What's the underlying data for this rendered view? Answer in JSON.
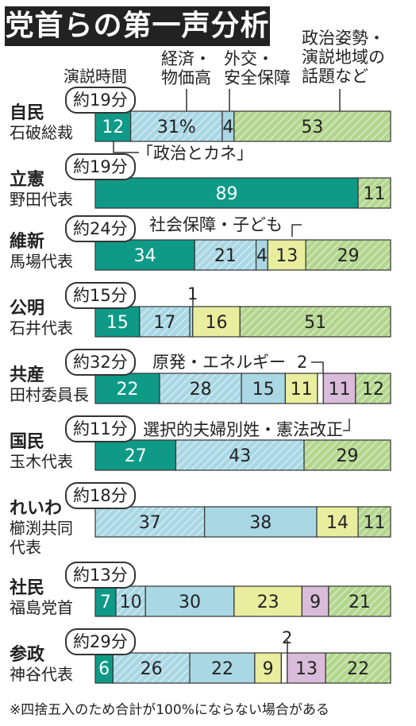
{
  "title": "党首らの第一声分析",
  "footnote": "※四捨五入のため合計が100%にならない場合がある",
  "colors": {
    "c1": "#0f9a87",
    "c2": "#a9d7e4",
    "c3": "#a9d7e4",
    "c4": "#e9ee9f",
    "c5": "#d9bcd9",
    "c6": "#b3d68e",
    "stroke": "#333333"
  },
  "headers": {
    "time": "演説時間",
    "economy": "経済・\n物価高",
    "diplomacy": "外交・\n安全保障",
    "politics": "政治姿勢・\n演説地域の\n話題など"
  },
  "callouts": {
    "money": "「政治とカネ」",
    "welfare": "社会保障・子ども",
    "energy": "原発・エネルギー",
    "surname": "選択的夫婦別姓・憲法改正",
    "one": "1",
    "two_kyosan": "2",
    "two_sansei": "2"
  },
  "chart_data": {
    "type": "bar",
    "orientation": "horizontal",
    "stacked": true,
    "unit": "%",
    "rows": [
      {
        "party": "自民",
        "leader": "石破総裁",
        "time": "約19分",
        "segments": [
          {
            "cat": "c1",
            "value": 12
          },
          {
            "cat": "c3",
            "value": 31,
            "label": "31%"
          },
          {
            "cat": "c2",
            "value": 4
          },
          {
            "cat": "c6",
            "value": 53
          }
        ]
      },
      {
        "party": "立憲",
        "leader": "野田代表",
        "time": "約19分",
        "segments": [
          {
            "cat": "c1",
            "value": 89
          },
          {
            "cat": "c6",
            "value": 11
          }
        ]
      },
      {
        "party": "維新",
        "leader": "馬場代表",
        "time": "約24分",
        "segments": [
          {
            "cat": "c1",
            "value": 34
          },
          {
            "cat": "c3",
            "value": 21
          },
          {
            "cat": "c2",
            "value": 4
          },
          {
            "cat": "c4",
            "value": 13
          },
          {
            "cat": "c6",
            "value": 29
          }
        ]
      },
      {
        "party": "公明",
        "leader": "石井代表",
        "time": "約15分",
        "segments": [
          {
            "cat": "c1",
            "value": 15
          },
          {
            "cat": "c3",
            "value": 17
          },
          {
            "cat": "c2",
            "value": 1,
            "label": ""
          },
          {
            "cat": "c4",
            "value": 16
          },
          {
            "cat": "c6",
            "value": 51
          }
        ]
      },
      {
        "party": "共産",
        "leader": "田村委員長",
        "time": "約32分",
        "segments": [
          {
            "cat": "c1",
            "value": 22
          },
          {
            "cat": "c3",
            "value": 28
          },
          {
            "cat": "c2",
            "value": 15
          },
          {
            "cat": "c4",
            "value": 11
          },
          {
            "cat": "c5w",
            "value": 2,
            "label": ""
          },
          {
            "cat": "c5",
            "value": 11
          },
          {
            "cat": "c6",
            "value": 12
          }
        ]
      },
      {
        "party": "国民",
        "leader": "玉木代表",
        "time": "約11分",
        "segments": [
          {
            "cat": "c1",
            "value": 27
          },
          {
            "cat": "c3",
            "value": 43
          },
          {
            "cat": "c6",
            "value": 29
          }
        ]
      },
      {
        "party": "れいわ",
        "leader": "櫛渕共同\n代表",
        "time": "約18分",
        "segments": [
          {
            "cat": "c3",
            "value": 37
          },
          {
            "cat": "c2",
            "value": 38
          },
          {
            "cat": "c4",
            "value": 14
          },
          {
            "cat": "c6",
            "value": 11
          }
        ]
      },
      {
        "party": "社民",
        "leader": "福島党首",
        "time": "約13分",
        "segments": [
          {
            "cat": "c1",
            "value": 7
          },
          {
            "cat": "c3",
            "value": 10
          },
          {
            "cat": "c2",
            "value": 30
          },
          {
            "cat": "c4",
            "value": 23
          },
          {
            "cat": "c5",
            "value": 9
          },
          {
            "cat": "c6",
            "value": 21
          }
        ]
      },
      {
        "party": "参政",
        "leader": "神谷代表",
        "time": "約29分",
        "segments": [
          {
            "cat": "c1",
            "value": 6
          },
          {
            "cat": "c3",
            "value": 26
          },
          {
            "cat": "c2",
            "value": 22
          },
          {
            "cat": "c4",
            "value": 9
          },
          {
            "cat": "c5w",
            "value": 2,
            "label": ""
          },
          {
            "cat": "c5",
            "value": 13
          },
          {
            "cat": "c6",
            "value": 22
          }
        ]
      }
    ]
  }
}
